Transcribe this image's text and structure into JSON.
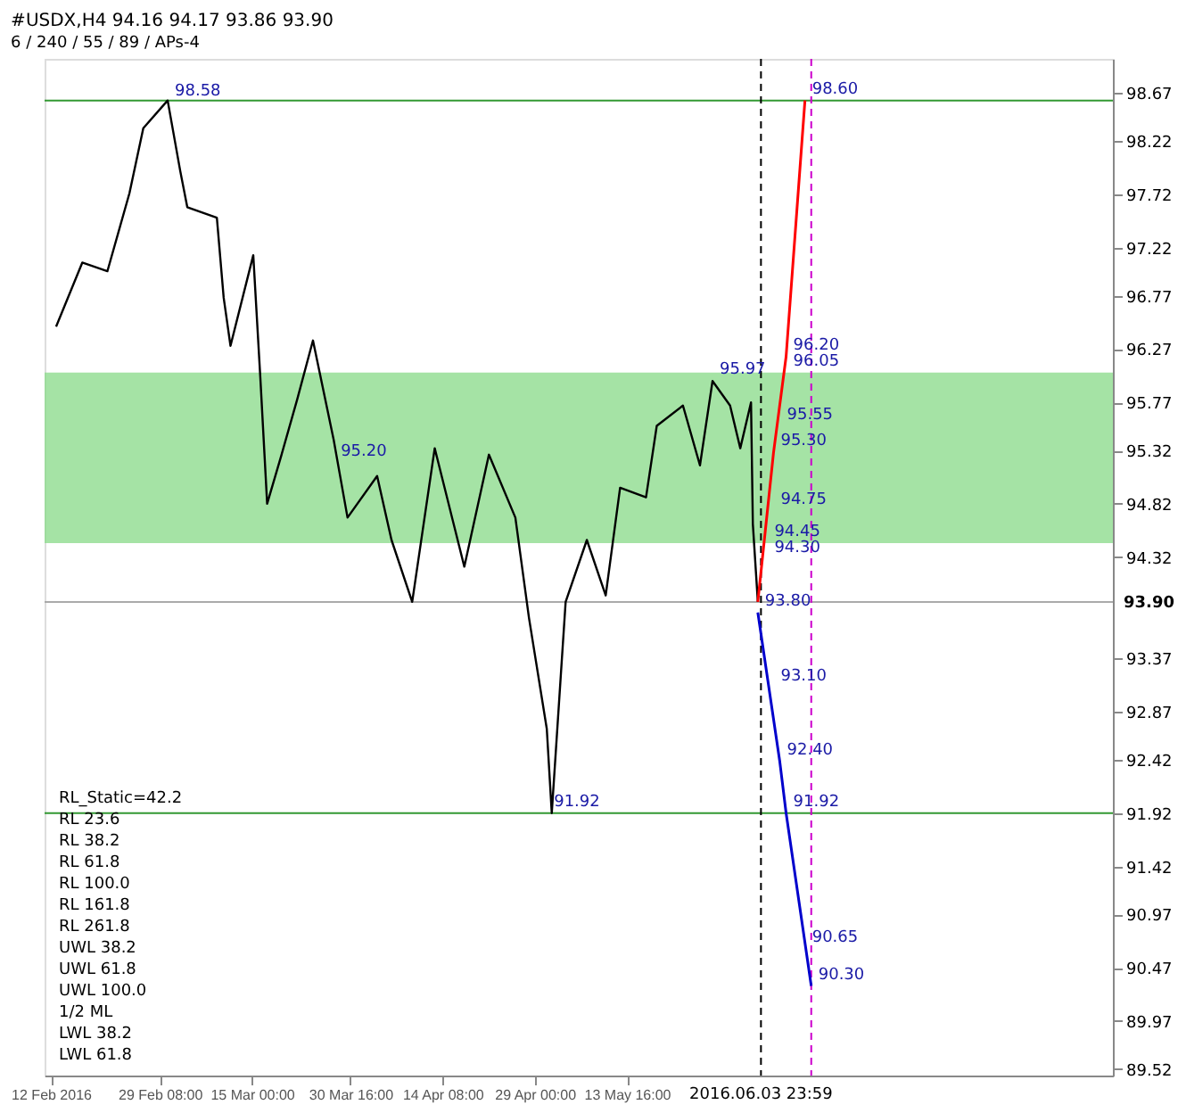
{
  "chart_data": {
    "type": "line",
    "title": "#USDX,H4  94.16 94.17 93.86 93.90",
    "subtitle": "6 / 240 / 55 / 89 / APs-4",
    "x": [
      "2016-02-12T20:00",
      "2016-02-17",
      "2016-02-21",
      "2016-02-24T12:00",
      "2016-02-26T17:00",
      "2016-03-01T14:00",
      "2016-03-03T14:00",
      "2016-03-04T17:00",
      "2016-03-09T10:00",
      "2016-03-10T12:00",
      "2016-03-11T14:00",
      "2016-03-15T05:00",
      "2016-03-16T08:00",
      "2016-03-17T10:00",
      "2016-03-19T17:00",
      "2016-03-22T05:00",
      "2016-03-24T17:00",
      "2016-03-28",
      "2016-03-30T05:00",
      "2016-04-03T22:00",
      "2016-04-06T05:00",
      "2016-04-09T12:00",
      "2016-04-13T02:00",
      "2016-04-17T19:00",
      "2016-04-21T17:00",
      "2016-04-25T22:00",
      "2016-04-28T02:00",
      "2016-04-30T22:00",
      "2016-05-01T17:00",
      "2016-05-03T22:00",
      "2016-05-07T07:00",
      "2016-05-10T07:00",
      "2016-05-12T14:00",
      "2016-05-16T17:00",
      "2016-05-18T10:00",
      "2016-05-22T14:00",
      "2016-05-25T07:00",
      "2016-05-27T07:00",
      "2016-05-30T02:00",
      "2016-05-31T17:00",
      "2016-06-02T10:00",
      "2016-06-02T17:00",
      "2016-06-03T12:00"
    ],
    "series": [
      {
        "color": "#000000",
        "values": [
          96.48,
          97.08,
          97.0,
          97.73,
          98.34,
          98.6,
          97.94,
          97.6,
          97.5,
          96.75,
          96.3,
          97.15,
          96.0,
          94.82,
          95.28,
          95.8,
          96.35,
          95.42,
          94.69,
          95.08,
          94.48,
          93.9,
          95.34,
          94.23,
          95.28,
          94.69,
          93.75,
          92.71,
          91.92,
          93.9,
          94.48,
          93.96,
          94.97,
          94.88,
          95.55,
          95.74,
          95.18,
          95.97,
          95.74,
          95.34,
          95.77,
          94.63,
          93.9
        ]
      },
      {
        "type": "line",
        "color": "#ff0000",
        "x": [
          "2016-06-03T12:00",
          "2016-06-06",
          "2016-06-08",
          "2016-06-11"
        ],
        "values": [
          93.9,
          95.3,
          96.2,
          98.6
        ]
      },
      {
        "type": "line",
        "color": "#0000cc",
        "x": [
          "2016-06-03T12:00",
          "2016-06-07",
          "2016-06-08",
          "2016-06-12"
        ],
        "values": [
          93.8,
          92.4,
          91.92,
          90.3
        ]
      }
    ],
    "xlim": [
      "2016-02-11",
      "2016-07-30"
    ],
    "xticks": [
      {
        "value": "2016-02-12",
        "label": "12 Feb 2016"
      },
      {
        "value": "2016-02-29T08:00",
        "label": "29 Feb 08:00"
      },
      {
        "value": "2016-03-15",
        "label": "15 Mar 00:00"
      },
      {
        "value": "2016-03-30T16:00",
        "label": "30 Mar 16:00"
      },
      {
        "value": "2016-04-14T08:00",
        "label": "14 Apr 08:00"
      },
      {
        "value": "2016-04-29",
        "label": "29 Apr 00:00"
      },
      {
        "value": "2016-05-13T16:00",
        "label": "13 May 16:00"
      }
    ],
    "ylim": [
      89.46,
      98.99
    ],
    "yticks": [
      89.52,
      89.97,
      90.47,
      90.97,
      91.42,
      91.92,
      92.42,
      92.87,
      93.37,
      94.32,
      94.82,
      95.32,
      95.77,
      96.27,
      96.77,
      97.22,
      97.72,
      98.22,
      98.67
    ],
    "bands": [
      {
        "axis": "y",
        "from": 94.45,
        "to": 96.05,
        "color": "#8fdc8f"
      }
    ],
    "ref_lines": [
      {
        "axis": "y",
        "value": 93.9,
        "label": "93.90",
        "color": "#aaaaaa"
      },
      {
        "axis": "y",
        "value": 98.6,
        "color": "#339933"
      },
      {
        "axis": "y",
        "value": 91.92,
        "color": "#339933"
      },
      {
        "axis": "x",
        "value": "2016-06-03T23:59",
        "label": "2016.06.03 23:59",
        "color": "#000000",
        "line_style": "dashed"
      },
      {
        "axis": "x",
        "value": "2016-06-12",
        "color": "#cc00cc",
        "line_style": "dashed"
      }
    ],
    "annotations": [
      "RL_Static=42.2",
      {
        "text": "98.58",
        "x": "2016-03-01T14:00",
        "y": 98.58
      },
      {
        "text": "95.97",
        "x": "2016-05-27T07:00",
        "y": 95.97
      },
      {
        "text": "95.20",
        "x": "2016-03-28",
        "y": 95.2
      },
      {
        "text": "91.92",
        "x": "2016-04-30T22:00",
        "y": 91.92
      },
      {
        "text": "98.60",
        "x": "2016-06-11",
        "y": 98.6
      },
      {
        "text": "96.20",
        "x": "2016-06-08",
        "y": 96.2
      },
      {
        "text": "96.05",
        "x": "2016-06-08",
        "y": 96.05
      },
      {
        "text": "95.55",
        "x": "2016-06-07",
        "y": 95.55
      },
      {
        "text": "95.30",
        "x": "2016-06-06",
        "y": 95.3
      },
      {
        "text": "94.75",
        "x": "2016-06-06",
        "y": 94.75
      },
      {
        "text": "94.45",
        "x": "2016-06-05",
        "y": 94.45
      },
      {
        "text": "94.30",
        "x": "2016-06-05",
        "y": 94.3
      },
      {
        "text": "93.80",
        "x": "2016-06-03T12:00",
        "y": 93.8
      },
      {
        "text": "93.10",
        "x": "2016-06-06",
        "y": 93.1
      },
      {
        "text": "92.40",
        "x": "2016-06-07",
        "y": 92.4
      },
      {
        "text": "91.92",
        "x": "2016-06-08",
        "y": 91.92
      },
      {
        "text": "90.65",
        "x": "2016-06-11",
        "y": 90.65
      },
      {
        "text": "90.30",
        "x": "2016-06-12",
        "y": 90.3
      },
      "RL 23.6",
      "RL 38.2",
      "RL 61.8",
      "RL 100.0",
      "RL 161.8",
      "RL 261.8",
      "UWL 38.2",
      "UWL 61.8",
      "UWL 100.0",
      "1/2 ML",
      "LWL 38.2",
      "LWL 61.8"
    ],
    "grid": false
  }
}
